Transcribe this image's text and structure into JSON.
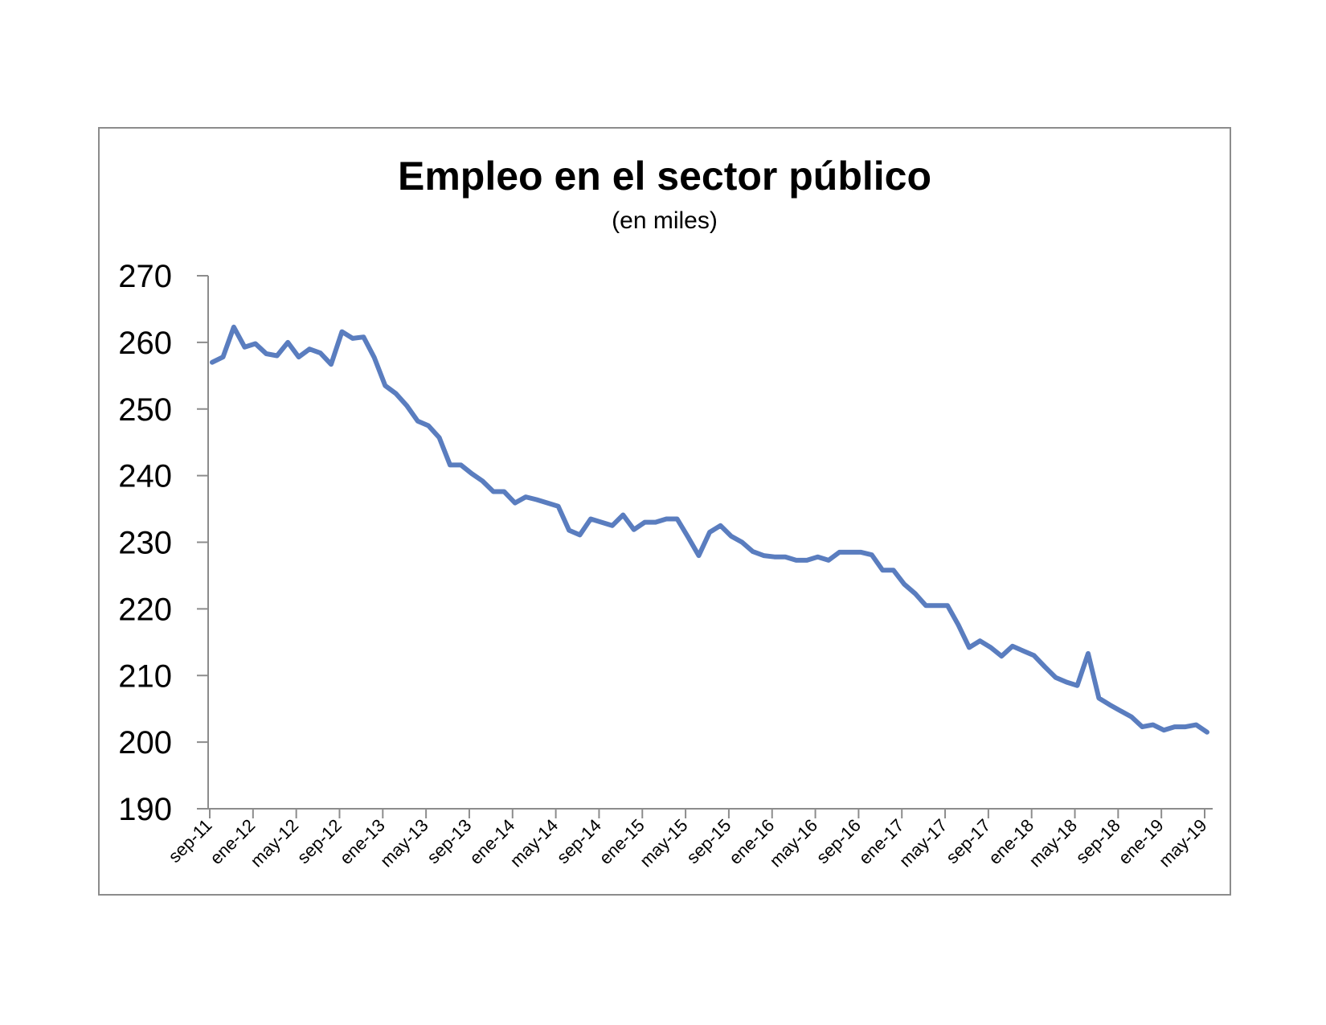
{
  "chart_data": {
    "type": "line",
    "title": "Empleo en el sector público",
    "subtitle": "(en miles)",
    "xlabel": "",
    "ylabel": "",
    "ylim": [
      190,
      270
    ],
    "yticks": [
      190,
      200,
      210,
      220,
      230,
      240,
      250,
      260,
      270
    ],
    "xtick_labels": [
      "sep-11",
      "ene-12",
      "may-12",
      "sep-12",
      "ene-13",
      "may-13",
      "sep-13",
      "ene-14",
      "may-14",
      "sep-14",
      "ene-15",
      "may-15",
      "sep-15",
      "ene-16",
      "may-16",
      "sep-16",
      "ene-17",
      "may-17",
      "sep-17",
      "ene-18",
      "may-18",
      "sep-18",
      "ene-19",
      "may-19"
    ],
    "grid": false,
    "legend": "none",
    "color": "#5a7dbf",
    "series": [
      {
        "values": [
          257.0,
          257.8,
          262.3,
          259.3,
          259.8,
          258.3,
          258.0,
          260.0,
          257.8,
          259.0,
          258.4,
          256.7,
          261.6,
          260.6,
          260.8,
          257.7,
          253.5,
          252.3,
          250.5,
          248.2,
          247.5,
          245.7,
          241.6,
          241.6,
          240.3,
          239.2,
          237.6,
          237.6,
          235.9,
          236.8,
          236.4,
          235.9,
          235.4,
          231.8,
          231.1,
          233.5,
          233.0,
          232.5,
          234.1,
          231.9,
          233.0,
          233.0,
          233.5,
          233.5,
          230.8,
          228.0,
          231.5,
          232.5,
          230.9,
          230.0,
          228.6,
          228.0,
          227.8,
          227.8,
          227.3,
          227.3,
          227.8,
          227.3,
          228.5,
          228.5,
          228.5,
          228.1,
          225.8,
          225.8,
          223.7,
          222.3,
          220.5,
          220.5,
          220.5,
          217.6,
          214.2,
          215.2,
          214.2,
          212.9,
          214.4,
          213.7,
          213.0,
          211.3,
          209.7,
          209.0,
          208.5,
          213.3,
          206.6,
          205.6,
          204.7,
          203.8,
          202.3,
          202.6,
          201.8,
          202.3,
          202.3,
          202.6,
          201.5
        ]
      }
    ]
  }
}
